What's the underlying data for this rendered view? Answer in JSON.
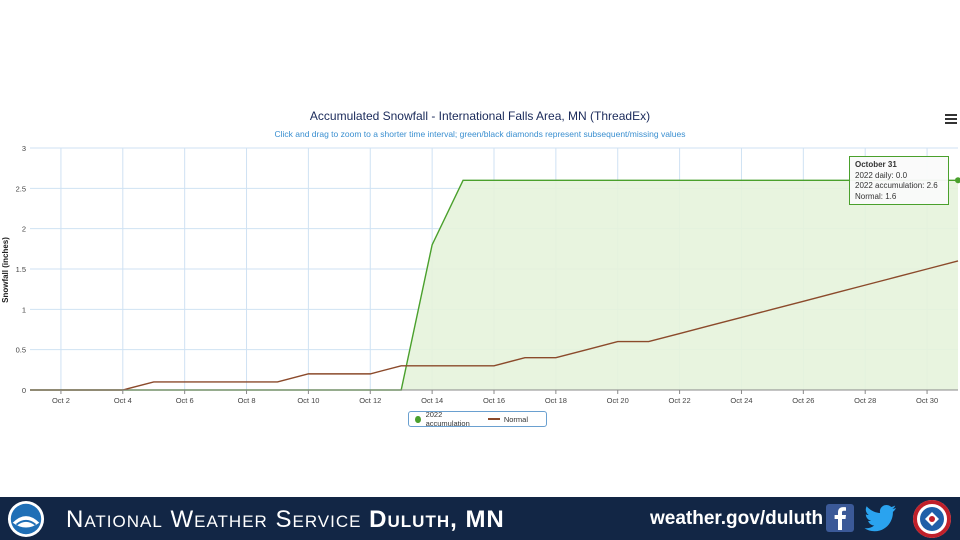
{
  "chart_data": {
    "type": "line",
    "title": "Accumulated Snowfall - International Falls Area, MN (ThreadEx)",
    "subtitle": "Click and drag to zoom to a shorter time interval; green/black diamonds represent subsequent/missing values",
    "ylabel": "Snowfall (inches)",
    "xlabel": "",
    "x_range_days": [
      1,
      31
    ],
    "ylim": [
      0,
      3
    ],
    "y_ticks": [
      "0",
      "0.5",
      "1",
      "1.5",
      "2",
      "2.5",
      "3"
    ],
    "x_tick_labels": [
      "Oct 2",
      "Oct 4",
      "Oct 6",
      "Oct 8",
      "Oct 10",
      "Oct 12",
      "Oct 14",
      "Oct 16",
      "Oct 18",
      "Oct 20",
      "Oct 22",
      "Oct 24",
      "Oct 26",
      "Oct 28",
      "Oct 30"
    ],
    "x_tick_days": [
      2,
      4,
      6,
      8,
      10,
      12,
      14,
      16,
      18,
      20,
      22,
      24,
      26,
      28,
      30
    ],
    "grid": true,
    "legend_position": "bottom-center",
    "series": [
      {
        "name": "2022 accumulation",
        "color": "#4aa02c",
        "fill": "#e6f3dc",
        "x": [
          1,
          2,
          3,
          4,
          5,
          6,
          7,
          8,
          9,
          10,
          11,
          12,
          13,
          14,
          15,
          16,
          17,
          18,
          19,
          20,
          21,
          22,
          23,
          24,
          25,
          26,
          27,
          28,
          29,
          30,
          31
        ],
        "y": [
          0,
          0,
          0,
          0,
          0,
          0,
          0,
          0,
          0,
          0,
          0,
          0,
          0,
          1.8,
          2.6,
          2.6,
          2.6,
          2.6,
          2.6,
          2.6,
          2.6,
          2.6,
          2.6,
          2.6,
          2.6,
          2.6,
          2.6,
          2.6,
          2.6,
          2.6,
          2.6
        ]
      },
      {
        "name": "Normal",
        "color": "#8b4a2b",
        "x": [
          1,
          2,
          3,
          4,
          5,
          6,
          7,
          8,
          9,
          10,
          11,
          12,
          13,
          14,
          15,
          16,
          17,
          18,
          19,
          20,
          21,
          22,
          23,
          24,
          25,
          26,
          27,
          28,
          29,
          30,
          31
        ],
        "y": [
          0,
          0,
          0,
          0,
          0.1,
          0.1,
          0.1,
          0.1,
          0.1,
          0.2,
          0.2,
          0.2,
          0.3,
          0.3,
          0.3,
          0.3,
          0.4,
          0.4,
          0.5,
          0.6,
          0.6,
          0.7,
          0.8,
          0.9,
          1.0,
          1.1,
          1.2,
          1.3,
          1.4,
          1.5,
          1.6
        ]
      }
    ],
    "tooltip": {
      "title": "October 31",
      "lines": [
        "2022 daily: 0.0",
        "2022 accumulation: 2.6",
        "Normal: 1.6"
      ]
    }
  },
  "legend": {
    "items": [
      "2022 accumulation",
      "Normal"
    ]
  },
  "footer": {
    "org_name_prefix": "National Weather Service",
    "org_office": "Duluth, MN",
    "url": "weather.gov/duluth",
    "background": "#122645",
    "logo_left_text": "NOAA",
    "logo_right_text": "NATIONAL WEATHER SERVICE"
  }
}
